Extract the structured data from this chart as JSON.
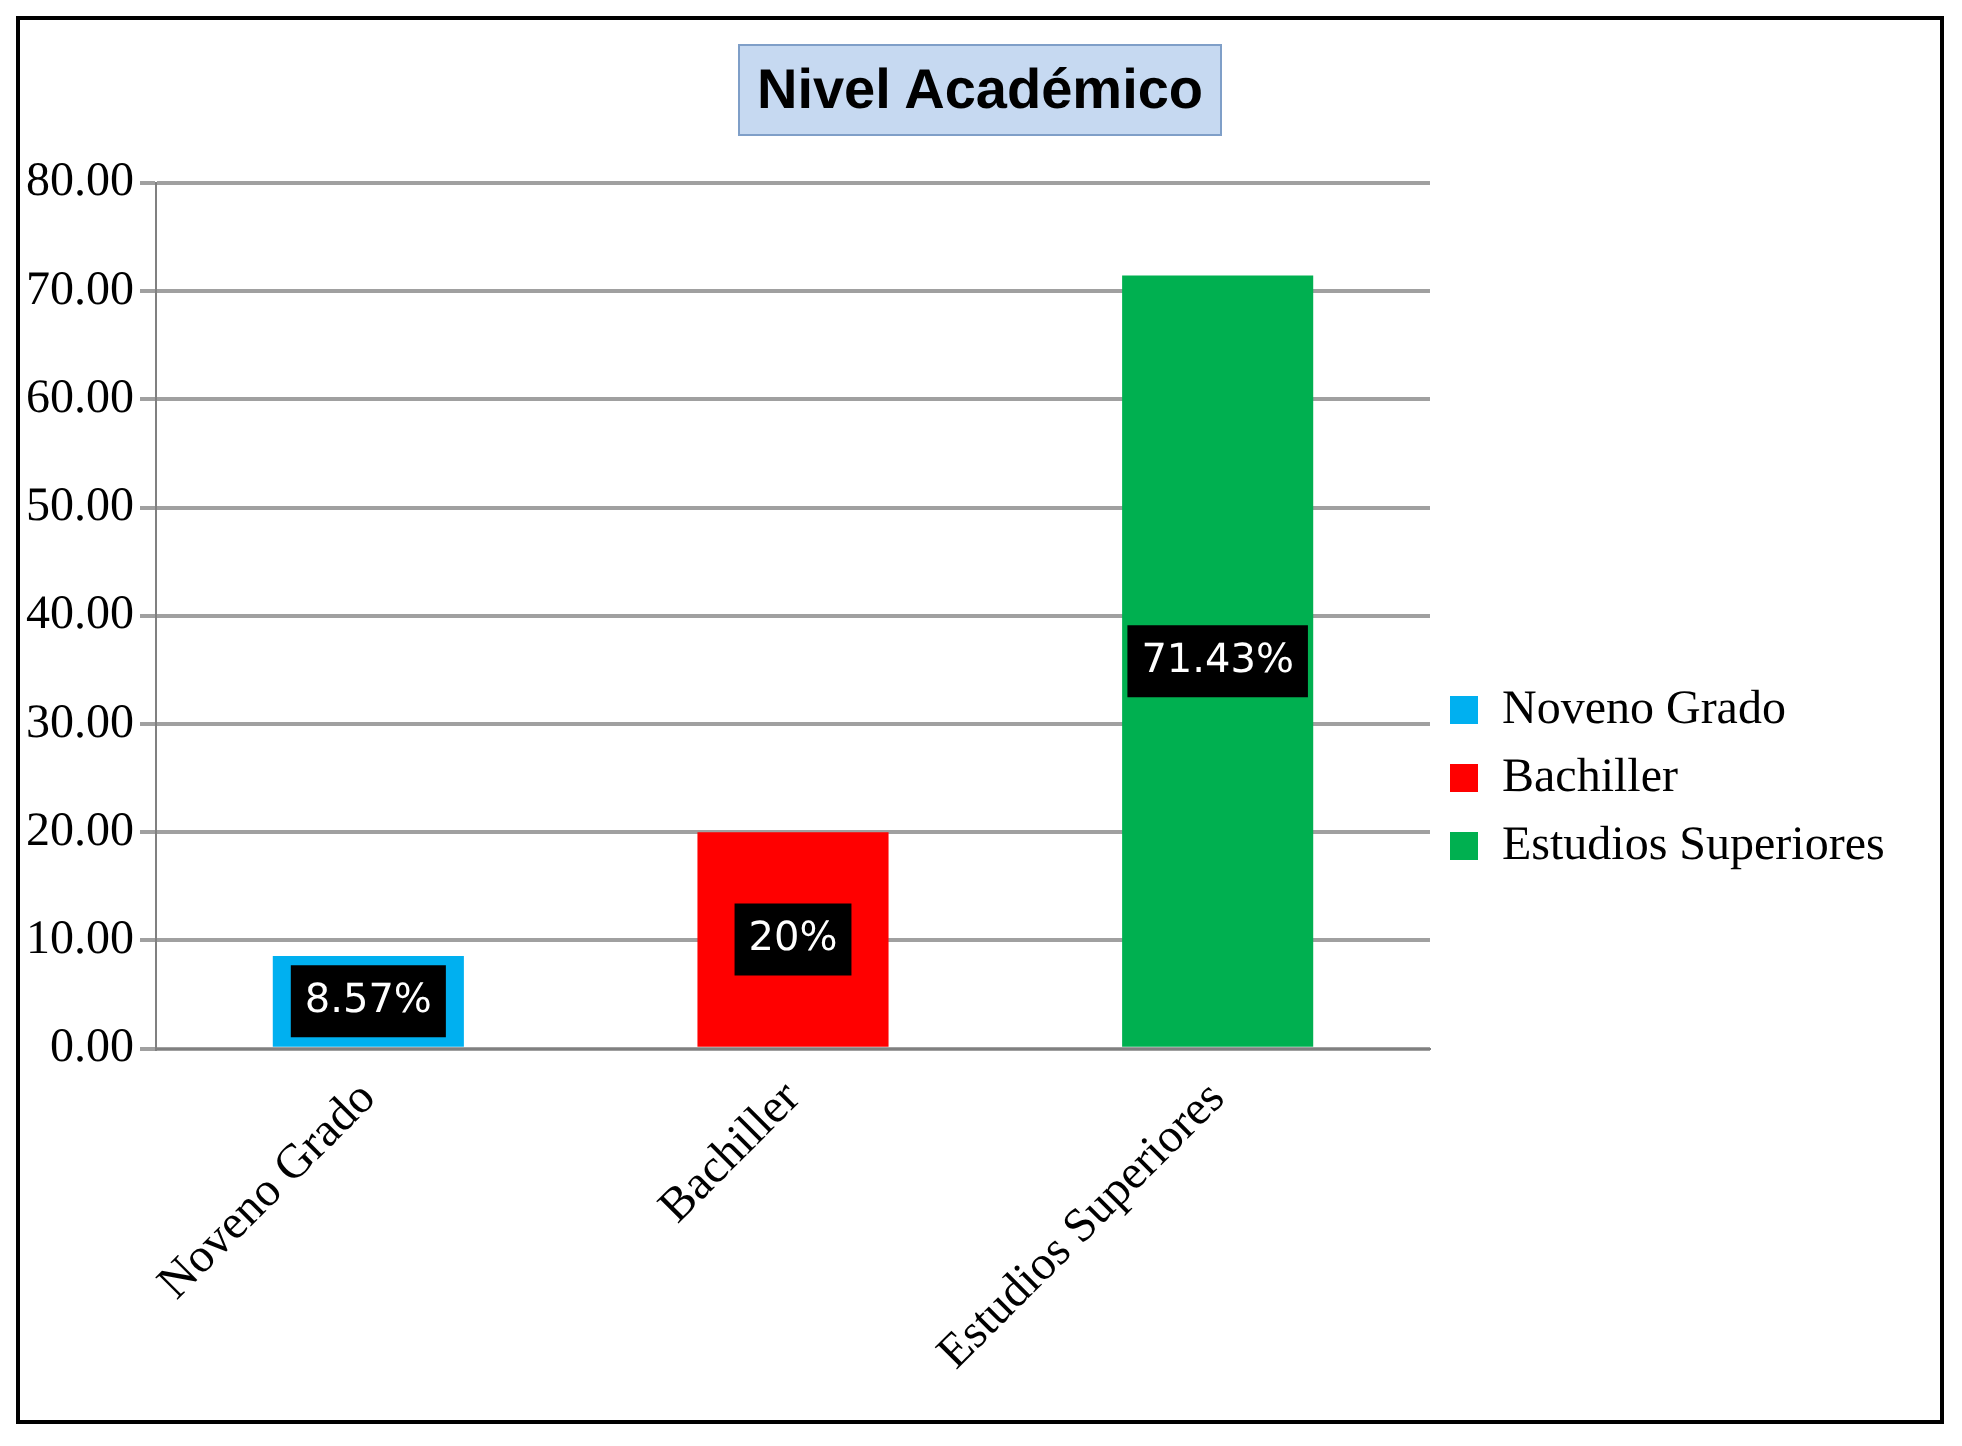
{
  "chart_data": {
    "type": "bar",
    "title": "Nivel Académico",
    "categories": [
      "Noveno Grado",
      "Bachiller",
      "Estudios Superiores"
    ],
    "series": [
      {
        "name": "Noveno Grado",
        "color": "#00b0f0",
        "values": [
          8.57,
          null,
          null
        ],
        "value_labels": [
          "8.57%",
          null,
          null
        ]
      },
      {
        "name": "Bachiller",
        "color": "#ff0000",
        "values": [
          null,
          20,
          null
        ],
        "value_labels": [
          null,
          "20%",
          null
        ]
      },
      {
        "name": "Estudios Superiores",
        "color": "#00b050",
        "values": [
          null,
          null,
          71.43
        ],
        "value_labels": [
          null,
          null,
          "71.43%"
        ]
      }
    ],
    "ylim": [
      0,
      80
    ],
    "yticks": [
      {
        "value": 0,
        "label": "0.00"
      },
      {
        "value": 10,
        "label": "10.00"
      },
      {
        "value": 20,
        "label": "20.00"
      },
      {
        "value": 30,
        "label": "30.00"
      },
      {
        "value": 40,
        "label": "40.00"
      },
      {
        "value": 50,
        "label": "50.00"
      },
      {
        "value": 60,
        "label": "60.00"
      },
      {
        "value": 70,
        "label": "70.00"
      },
      {
        "value": 80,
        "label": "80.00"
      }
    ],
    "grid": "y",
    "legend": "right"
  }
}
